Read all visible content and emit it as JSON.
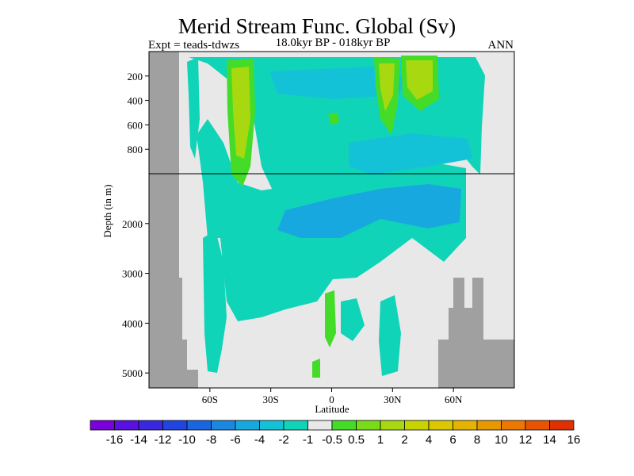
{
  "chart_data": {
    "type": "heatmap",
    "title": "Merid Stream Func. Global (Sv)",
    "subtitle": "18.0kyr BP - 018kyr BP",
    "experiment_label": "Expt = teads-tdwzs",
    "season_label": "ANN",
    "xlabel": "Latitude",
    "ylabel": "Depth (in m)",
    "x_ticks": [
      {
        "value": -60,
        "label": "60S"
      },
      {
        "value": -30,
        "label": "30S"
      },
      {
        "value": 0,
        "label": "0"
      },
      {
        "value": 30,
        "label": "30N"
      },
      {
        "value": 60,
        "label": "60N"
      }
    ],
    "y_ticks_upper": [
      200,
      400,
      600,
      800
    ],
    "y_ticks_lower": [
      2000,
      3000,
      4000,
      5000
    ],
    "xlim": [
      -90,
      90
    ],
    "upper_depth_range": [
      0,
      1000
    ],
    "lower_depth_range": [
      1000,
      5300
    ],
    "colorbar": {
      "levels": [
        "-16",
        "-14",
        "-12",
        "-10",
        "-8",
        "-6",
        "-4",
        "-2",
        "-1",
        "-0.5",
        "0.5",
        "1",
        "2",
        "4",
        "6",
        "8",
        "10",
        "12",
        "14",
        "16"
      ],
      "colors": [
        "#7a00dc",
        "#5a10e0",
        "#3a28e0",
        "#2045e0",
        "#1a66e0",
        "#1a88e0",
        "#18a8e0",
        "#14c2d8",
        "#10d4b8",
        "#e8e8e8",
        "#44dc28",
        "#78dc18",
        "#a8d810",
        "#c8d400",
        "#dcc800",
        "#e4b400",
        "#e89800",
        "#ec7800",
        "#e85400",
        "#e03000"
      ]
    },
    "field_colors": {
      "background": "#e8e8e8",
      "land": "#a0a0a0",
      "weak_negative": "#10d4b8",
      "moderate_negative": "#14c2d8",
      "negative": "#18a8e0",
      "weak_positive": "#44dc28",
      "positive": "#a8d810"
    }
  }
}
